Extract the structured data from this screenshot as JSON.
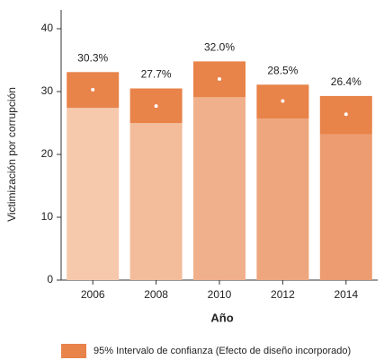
{
  "chart_data": {
    "type": "bar_ci",
    "x_label": "Año",
    "y_label": "Victimización por corrupción",
    "categories": [
      "2006",
      "2008",
      "2010",
      "2012",
      "2014"
    ],
    "values": [
      30.3,
      27.7,
      32.0,
      28.5,
      26.4
    ],
    "value_labels": [
      "30.3%",
      "27.7%",
      "32.0%",
      "28.5%",
      "26.4%"
    ],
    "ci_lower": [
      27.4,
      25.0,
      29.1,
      25.7,
      23.2
    ],
    "ci_upper": [
      33.1,
      30.5,
      34.8,
      31.1,
      29.3
    ],
    "bar_colors": [
      "#f6c9ad",
      "#f3bc9b",
      "#f1b08c",
      "#eea67e",
      "#ec9c70"
    ],
    "ci_color": "#e8834a",
    "legend": "95% Intervalo de confianza (Efecto de diseño incorporado)",
    "ylim": [
      0,
      43
    ],
    "yticks": [
      0,
      10,
      20,
      30,
      40
    ]
  }
}
